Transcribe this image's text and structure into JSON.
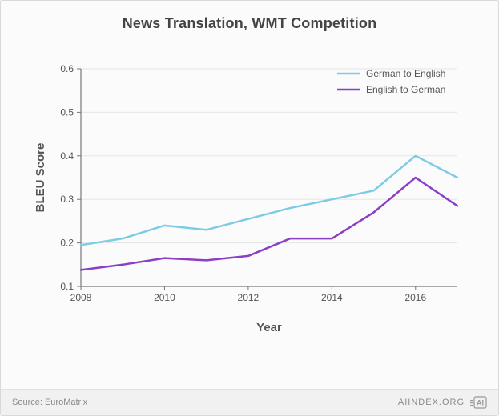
{
  "card": {
    "background_color": "#fbfbfb",
    "border_color": "#d9d9d9"
  },
  "title": {
    "text": "News Translation, WMT Competition",
    "fontsize": 18,
    "color": "#4a4a4a"
  },
  "chart": {
    "type": "line",
    "plot_bg": "#fbfbfb",
    "axis_color": "#777777",
    "grid_color": "#e6e6e6",
    "line_width": 2.5,
    "x": {
      "label": "Year",
      "min": 2008,
      "max": 2017,
      "ticks": [
        2008,
        2010,
        2012,
        2014,
        2016
      ]
    },
    "y": {
      "label": "BLEU Score",
      "min": 0.1,
      "max": 0.6,
      "ticks": [
        0.1,
        0.2,
        0.3,
        0.4,
        0.5,
        0.6
      ]
    },
    "series": [
      {
        "name": "German to English",
        "color": "#7ecbe6",
        "x": [
          2008,
          2009,
          2010,
          2011,
          2012,
          2013,
          2014,
          2015,
          2016,
          2017
        ],
        "y": [
          0.195,
          0.21,
          0.24,
          0.23,
          0.255,
          0.28,
          0.3,
          0.32,
          0.4,
          0.35
        ]
      },
      {
        "name": "English to German",
        "color": "#8a3fc6",
        "x": [
          2008,
          2009,
          2010,
          2011,
          2012,
          2013,
          2014,
          2015,
          2016,
          2017
        ],
        "y": [
          0.138,
          0.15,
          0.165,
          0.16,
          0.17,
          0.21,
          0.21,
          0.27,
          0.35,
          0.285
        ]
      }
    ],
    "legend": {
      "position": "top-right",
      "swatch_width": 28,
      "fontsize": 12
    }
  },
  "footer": {
    "source_label": "Source: EuroMatrix",
    "brand_text": "aiindex.org",
    "bg": "#f1f1f1",
    "border": "#e2e2e2",
    "color": "#8a8a8a"
  }
}
